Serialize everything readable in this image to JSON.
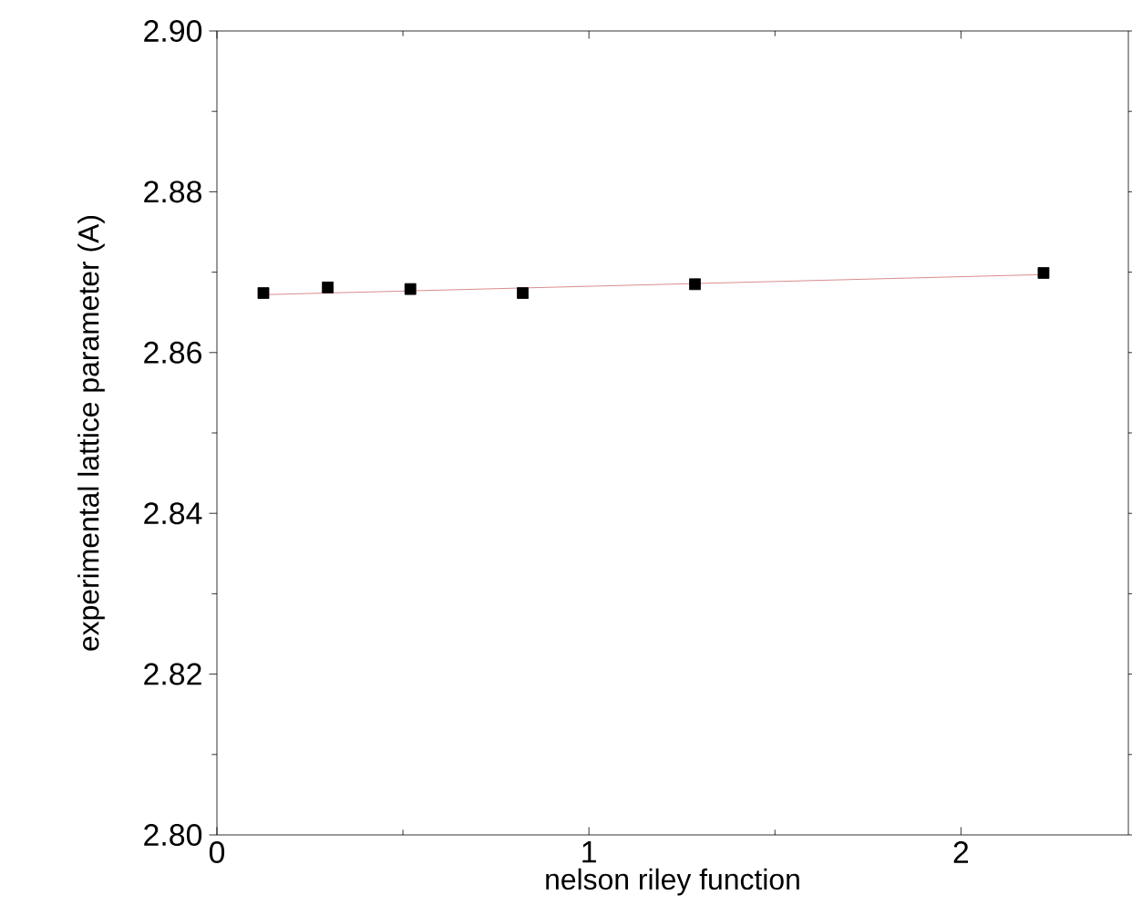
{
  "chart_data": {
    "type": "scatter",
    "xlabel": "nelson riley function",
    "ylabel": "experimental lattice parameter (A)",
    "xlim": [
      0,
      2.45
    ],
    "ylim": [
      2.8,
      2.9
    ],
    "xticks": [
      0,
      1,
      2
    ],
    "yticks": [
      {
        "value": 2.8,
        "label": "2.80"
      },
      2.82,
      2.84,
      2.86,
      2.88,
      {
        "value": 2.9,
        "label": "2.90"
      }
    ],
    "grid": false,
    "x": [
      0.125,
      0.298,
      0.52,
      0.822,
      1.285,
      2.222
    ],
    "series": [
      {
        "color": "#000000",
        "marker": "square",
        "values": [
          2.8674,
          2.8681,
          2.8679,
          2.8674,
          2.8685,
          2.8699
        ]
      },
      {
        "type": "line",
        "color": "#d07070",
        "x": [
          0.125,
          2.222
        ],
        "values": [
          2.8672,
          2.8697
        ]
      }
    ]
  }
}
